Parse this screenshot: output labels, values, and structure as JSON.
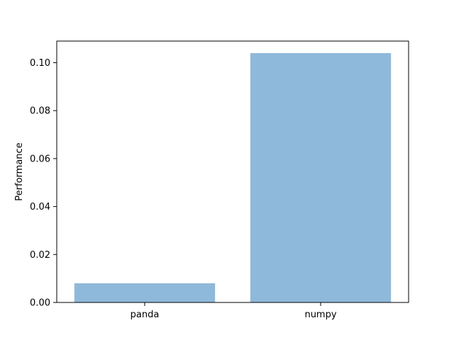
{
  "chart_data": {
    "type": "bar",
    "title": "",
    "xlabel": "",
    "ylabel": "Performance",
    "categories": [
      "panda",
      "numpy"
    ],
    "values": [
      0.008,
      0.104
    ],
    "ylim": [
      0,
      0.109
    ],
    "yticks": [
      0.0,
      0.02,
      0.04,
      0.06,
      0.08,
      0.1
    ],
    "ytick_labels": [
      "0.00",
      "0.02",
      "0.04",
      "0.06",
      "0.08",
      "0.10"
    ],
    "grid": false,
    "bar_color": "#8fb9da"
  }
}
